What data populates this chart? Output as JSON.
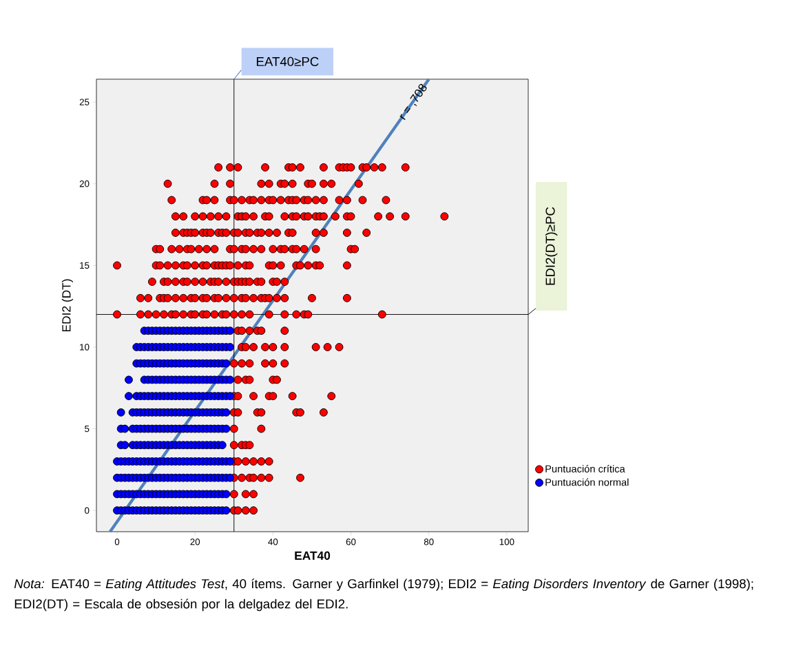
{
  "chart_data": {
    "type": "scatter",
    "xlabel": "EAT40",
    "ylabel": "EDI2 (DT)",
    "xlim": [
      -5.3,
      105.5
    ],
    "ylim": [
      -1.3,
      26.4
    ],
    "xticks": [
      0,
      20,
      40,
      60,
      80,
      100
    ],
    "yticks": [
      0,
      5,
      10,
      15,
      20,
      25
    ],
    "legend": "right",
    "series": [
      {
        "name": "Puntuación crítica",
        "color": "#ff0000",
        "marker": "circle",
        "x": [
          26,
          29,
          31,
          38,
          44,
          45,
          47,
          53,
          57,
          58,
          59,
          60,
          63,
          64,
          66,
          68,
          74,
          13,
          25,
          29,
          37,
          39,
          42,
          43,
          45,
          49,
          50,
          53,
          55,
          62,
          14,
          22,
          23,
          25,
          29,
          30,
          32,
          34,
          35,
          37,
          39,
          40,
          42,
          44,
          45,
          46,
          48,
          49,
          51,
          53,
          57,
          59,
          63,
          69,
          15,
          17,
          20,
          22,
          24,
          26,
          28,
          31,
          32,
          33,
          35,
          38,
          39,
          43,
          45,
          46,
          48,
          49,
          51,
          52,
          53,
          56,
          59,
          60,
          67,
          70,
          74,
          84,
          15,
          17,
          18,
          19,
          20,
          22,
          23,
          24,
          26,
          27,
          28,
          30,
          31,
          33,
          34,
          36,
          37,
          39,
          41,
          44,
          45,
          51,
          53,
          59,
          64,
          10,
          11,
          14,
          16,
          18,
          19,
          21,
          23,
          25,
          29,
          30,
          32,
          33,
          35,
          37,
          40,
          42,
          43,
          45,
          46,
          48,
          51,
          60,
          61,
          0,
          10,
          11,
          13,
          15,
          17,
          18,
          20,
          22,
          23,
          25,
          26,
          27,
          28,
          29,
          31,
          33,
          34,
          39,
          40,
          42,
          46,
          47,
          49,
          51,
          52,
          59,
          9,
          12,
          13,
          15,
          17,
          18,
          20,
          22,
          24,
          25,
          26,
          28,
          30,
          31,
          32,
          33,
          34,
          36,
          37,
          40,
          41,
          43,
          6,
          8,
          11,
          12,
          13,
          15,
          17,
          19,
          20,
          22,
          23,
          25,
          26,
          28,
          30,
          32,
          33,
          35,
          37,
          38,
          39,
          41,
          43,
          50,
          59,
          0,
          6,
          8,
          10,
          12,
          14,
          15,
          17,
          19,
          20,
          22,
          23,
          25,
          27,
          28,
          30,
          32,
          34,
          39,
          43,
          46,
          48,
          49,
          68,
          31,
          32,
          34,
          36,
          37,
          43,
          32,
          33,
          35,
          38,
          40,
          43,
          51,
          54,
          57,
          30,
          32,
          34,
          38,
          40,
          43,
          31,
          33,
          34,
          40,
          41,
          30,
          31,
          35,
          39,
          40,
          45,
          55,
          30,
          31,
          36,
          37,
          46,
          47,
          53,
          30,
          37,
          30,
          32,
          33,
          34,
          30,
          31,
          33,
          35,
          37,
          39,
          30,
          32,
          34,
          35,
          37,
          39,
          47,
          30,
          33,
          35,
          30,
          31,
          33,
          35
        ],
        "values": [
          21,
          21,
          21,
          21,
          21,
          21,
          21,
          21,
          21,
          21,
          21,
          21,
          21,
          21,
          21,
          21,
          21,
          20,
          20,
          20,
          20,
          20,
          20,
          20,
          20,
          20,
          20,
          20,
          20,
          20,
          19,
          19,
          19,
          19,
          19,
          19,
          19,
          19,
          19,
          19,
          19,
          19,
          19,
          19,
          19,
          19,
          19,
          19,
          19,
          19,
          19,
          19,
          19,
          19,
          18,
          18,
          18,
          18,
          18,
          18,
          18,
          18,
          18,
          18,
          18,
          18,
          18,
          18,
          18,
          18,
          18,
          18,
          18,
          18,
          18,
          18,
          18,
          18,
          18,
          18,
          18,
          18,
          17,
          17,
          17,
          17,
          17,
          17,
          17,
          17,
          17,
          17,
          17,
          17,
          17,
          17,
          17,
          17,
          17,
          17,
          17,
          17,
          17,
          17,
          17,
          17,
          17,
          16,
          16,
          16,
          16,
          16,
          16,
          16,
          16,
          16,
          16,
          16,
          16,
          16,
          16,
          16,
          16,
          16,
          16,
          16,
          16,
          16,
          16,
          16,
          16,
          15,
          15,
          15,
          15,
          15,
          15,
          15,
          15,
          15,
          15,
          15,
          15,
          15,
          15,
          15,
          15,
          15,
          15,
          15,
          15,
          15,
          15,
          15,
          15,
          15,
          15,
          15,
          14,
          14,
          14,
          14,
          14,
          14,
          14,
          14,
          14,
          14,
          14,
          14,
          14,
          14,
          14,
          14,
          14,
          14,
          14,
          14,
          14,
          14,
          13,
          13,
          13,
          13,
          13,
          13,
          13,
          13,
          13,
          13,
          13,
          13,
          13,
          13,
          13,
          13,
          13,
          13,
          13,
          13,
          13,
          13,
          13,
          13,
          13,
          12,
          12,
          12,
          12,
          12,
          12,
          12,
          12,
          12,
          12,
          12,
          12,
          12,
          12,
          12,
          12,
          12,
          12,
          12,
          12,
          12,
          12,
          12,
          12,
          11,
          11,
          11,
          11,
          11,
          11,
          10,
          10,
          10,
          10,
          10,
          10,
          10,
          10,
          10,
          9,
          9,
          9,
          9,
          9,
          9,
          8,
          8,
          8,
          8,
          8,
          7,
          7,
          7,
          7,
          7,
          7,
          7,
          6,
          6,
          6,
          6,
          6,
          6,
          6,
          5,
          5,
          4,
          4,
          4,
          4,
          3,
          3,
          3,
          3,
          3,
          3,
          2,
          2,
          2,
          2,
          2,
          2,
          2,
          1,
          1,
          1,
          0,
          0,
          0,
          0
        ]
      },
      {
        "name": "Puntuación normal",
        "color": "#0000ff",
        "marker": "circle",
        "x": [
          0,
          1,
          2,
          3,
          4,
          5,
          6,
          7,
          8,
          9,
          10,
          11,
          12,
          13,
          14,
          15,
          16,
          17,
          18,
          19,
          20,
          21,
          22,
          23,
          24,
          25,
          26,
          27,
          28,
          0,
          1,
          2,
          3,
          4,
          5,
          6,
          7,
          8,
          9,
          10,
          11,
          12,
          13,
          14,
          15,
          16,
          17,
          18,
          19,
          20,
          21,
          22,
          23,
          24,
          25,
          26,
          27,
          28,
          0,
          1,
          2,
          3,
          4,
          5,
          6,
          7,
          8,
          9,
          10,
          11,
          12,
          13,
          14,
          15,
          16,
          17,
          18,
          19,
          20,
          21,
          22,
          23,
          24,
          25,
          26,
          27,
          28,
          29,
          0,
          1,
          2,
          3,
          4,
          5,
          6,
          7,
          8,
          9,
          10,
          11,
          12,
          13,
          14,
          15,
          16,
          17,
          18,
          19,
          20,
          21,
          22,
          23,
          24,
          25,
          26,
          27,
          28,
          29,
          1,
          2,
          4,
          5,
          6,
          7,
          8,
          9,
          10,
          11,
          12,
          13,
          14,
          15,
          16,
          17,
          18,
          19,
          20,
          21,
          22,
          23,
          24,
          25,
          26,
          27,
          1,
          2,
          4,
          5,
          6,
          7,
          8,
          9,
          10,
          11,
          12,
          13,
          14,
          15,
          16,
          17,
          18,
          19,
          20,
          21,
          22,
          23,
          24,
          25,
          26,
          27,
          28,
          1,
          4,
          5,
          6,
          7,
          8,
          9,
          10,
          11,
          12,
          13,
          14,
          15,
          16,
          17,
          18,
          19,
          20,
          21,
          22,
          23,
          24,
          25,
          26,
          27,
          28,
          3,
          5,
          6,
          7,
          8,
          9,
          10,
          11,
          12,
          13,
          14,
          15,
          16,
          17,
          18,
          19,
          20,
          21,
          22,
          23,
          24,
          25,
          26,
          27,
          28,
          29,
          3,
          7,
          8,
          9,
          10,
          11,
          12,
          13,
          14,
          15,
          16,
          17,
          18,
          19,
          20,
          21,
          22,
          23,
          24,
          25,
          26,
          27,
          28,
          29,
          5,
          6,
          7,
          8,
          9,
          10,
          11,
          12,
          13,
          14,
          15,
          16,
          17,
          18,
          19,
          20,
          21,
          22,
          23,
          24,
          25,
          26,
          27,
          28,
          5,
          6,
          7,
          8,
          9,
          10,
          11,
          12,
          13,
          14,
          15,
          16,
          17,
          18,
          19,
          20,
          21,
          22,
          23,
          24,
          25,
          26,
          27,
          28,
          29,
          7,
          8,
          9,
          10,
          11,
          12,
          13,
          14,
          15,
          16,
          17,
          18,
          19,
          20,
          21,
          22,
          23,
          24,
          25,
          26,
          27,
          28,
          29
        ],
        "values": [
          0,
          0,
          0,
          0,
          0,
          0,
          0,
          0,
          0,
          0,
          0,
          0,
          0,
          0,
          0,
          0,
          0,
          0,
          0,
          0,
          0,
          0,
          0,
          0,
          0,
          0,
          0,
          0,
          0,
          1,
          1,
          1,
          1,
          1,
          1,
          1,
          1,
          1,
          1,
          1,
          1,
          1,
          1,
          1,
          1,
          1,
          1,
          1,
          1,
          1,
          1,
          1,
          1,
          1,
          1,
          1,
          1,
          1,
          2,
          2,
          2,
          2,
          2,
          2,
          2,
          2,
          2,
          2,
          2,
          2,
          2,
          2,
          2,
          2,
          2,
          2,
          2,
          2,
          2,
          2,
          2,
          2,
          2,
          2,
          2,
          2,
          2,
          2,
          3,
          3,
          3,
          3,
          3,
          3,
          3,
          3,
          3,
          3,
          3,
          3,
          3,
          3,
          3,
          3,
          3,
          3,
          3,
          3,
          3,
          3,
          3,
          3,
          3,
          3,
          3,
          3,
          3,
          3,
          4,
          4,
          4,
          4,
          4,
          4,
          4,
          4,
          4,
          4,
          4,
          4,
          4,
          4,
          4,
          4,
          4,
          4,
          4,
          4,
          4,
          4,
          4,
          4,
          4,
          4,
          5,
          5,
          5,
          5,
          5,
          5,
          5,
          5,
          5,
          5,
          5,
          5,
          5,
          5,
          5,
          5,
          5,
          5,
          5,
          5,
          5,
          5,
          5,
          5,
          5,
          5,
          5,
          6,
          6,
          6,
          6,
          6,
          6,
          6,
          6,
          6,
          6,
          6,
          6,
          6,
          6,
          6,
          6,
          6,
          6,
          6,
          6,
          6,
          6,
          6,
          6,
          6,
          6,
          7,
          7,
          7,
          7,
          7,
          7,
          7,
          7,
          7,
          7,
          7,
          7,
          7,
          7,
          7,
          7,
          7,
          7,
          7,
          7,
          7,
          7,
          7,
          7,
          7,
          7,
          8,
          8,
          8,
          8,
          8,
          8,
          8,
          8,
          8,
          8,
          8,
          8,
          8,
          8,
          8,
          8,
          8,
          8,
          8,
          8,
          8,
          8,
          8,
          8,
          9,
          9,
          9,
          9,
          9,
          9,
          9,
          9,
          9,
          9,
          9,
          9,
          9,
          9,
          9,
          9,
          9,
          9,
          9,
          9,
          9,
          9,
          9,
          9,
          10,
          10,
          10,
          10,
          10,
          10,
          10,
          10,
          10,
          10,
          10,
          10,
          10,
          10,
          10,
          10,
          10,
          10,
          10,
          10,
          10,
          10,
          10,
          10,
          10,
          11,
          11,
          11,
          11,
          11,
          11,
          11,
          11,
          11,
          11,
          11,
          11,
          11,
          11,
          11,
          11,
          11,
          11,
          11,
          11,
          11,
          11,
          11
        ]
      },
      {
        "type": "line",
        "marker": "none",
        "color": "#4f81bd",
        "x": [
          -1.8,
          80
        ],
        "values": [
          -1.3,
          26.4
        ]
      }
    ],
    "ref_lines": [
      {
        "axis": "x",
        "value": 30,
        "label": "EAT40≥PC",
        "color": "#000000"
      },
      {
        "axis": "y",
        "value": 12,
        "label": "EDI2(DT)≥PC",
        "color": "#000000"
      }
    ],
    "annotations": [
      {
        "text": "r = ,708",
        "x": 76,
        "y": 25
      },
      "*Nota:* EAT40 = *Eating Attitudes Test*, 40 ítems. Garner y Garfinkel (1979); EDI2 = *Eating Disorders Inventory* de Garner (1998); EDI2(DT) = Escala de obsesión por la delgadez del EDI2."
    ]
  }
}
